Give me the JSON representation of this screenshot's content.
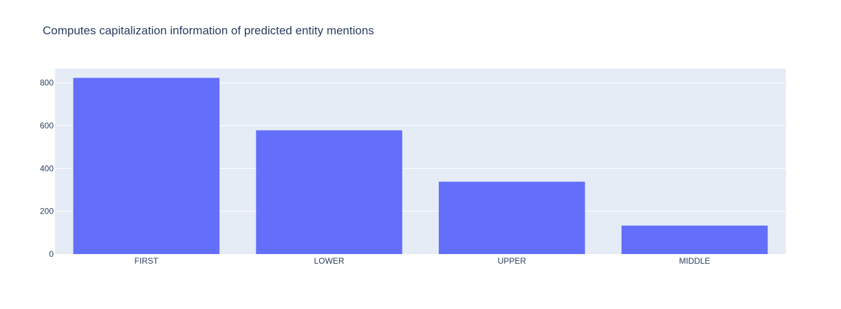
{
  "chart_data": {
    "type": "bar",
    "title": "Computes capitalization information of predicted entity mentions",
    "xlabel": "",
    "ylabel": "",
    "categories": [
      "FIRST",
      "LOWER",
      "UPPER",
      "MIDDLE"
    ],
    "values": [
      823,
      578,
      338,
      133
    ],
    "ylim": [
      0,
      866
    ],
    "yticks": [
      0,
      200,
      400,
      600,
      800
    ],
    "grid": true,
    "legend": "none",
    "colors": {
      "bar": "#636efa",
      "plot_background": "#e5ecf6",
      "gridline": "#ffffff",
      "text": "#2a3f5f"
    }
  }
}
